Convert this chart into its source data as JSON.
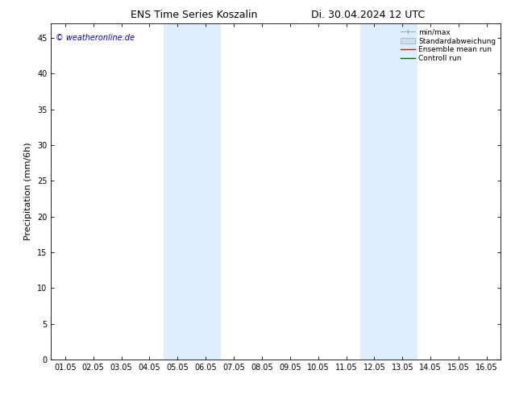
{
  "title_left": "ENS Time Series Koszalin",
  "title_right": "Di. 30.04.2024 12 UTC",
  "ylabel": "Precipitation (mm/6h)",
  "watermark": "© weatheronline.de",
  "watermark_color": "#0000cc",
  "ylim_min": 0,
  "ylim_max": 47,
  "yticks": [
    0,
    5,
    10,
    15,
    20,
    25,
    30,
    35,
    40,
    45
  ],
  "xtick_labels": [
    "01.05",
    "02.05",
    "03.05",
    "04.05",
    "05.05",
    "06.05",
    "07.05",
    "08.05",
    "09.05",
    "10.05",
    "11.05",
    "12.05",
    "13.05",
    "14.05",
    "15.05",
    "16.05"
  ],
  "xtick_positions": [
    0,
    1,
    2,
    3,
    4,
    5,
    6,
    7,
    8,
    9,
    10,
    11,
    12,
    13,
    14,
    15
  ],
  "shaded_bands": [
    {
      "x_start": 3.5,
      "x_end": 5.5
    },
    {
      "x_start": 10.5,
      "x_end": 12.5
    }
  ],
  "shade_color": "#ddeeff",
  "background_color": "#ffffff",
  "tick_fontsize": 7,
  "label_fontsize": 8,
  "title_fontsize": 9
}
